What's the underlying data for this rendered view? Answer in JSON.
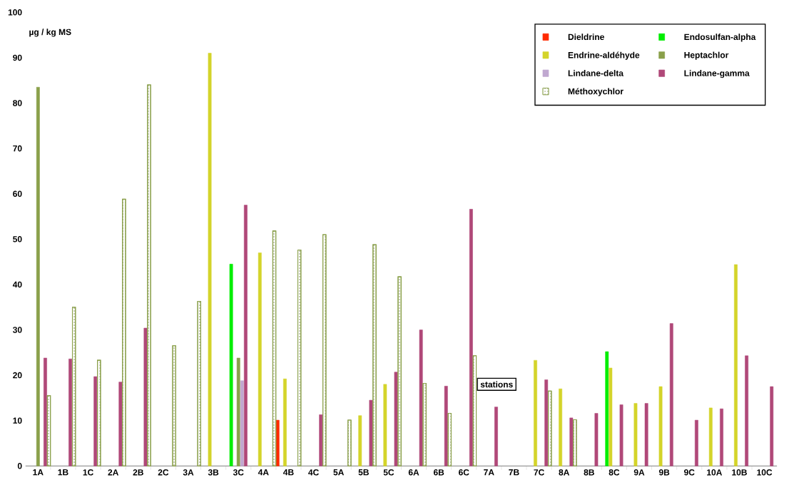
{
  "chart_data": {
    "type": "bar",
    "xlabel": "stations",
    "ylabel": "µg / kg MS",
    "categories": [
      "1A",
      "1B",
      "1C",
      "2A",
      "2B",
      "2C",
      "3A",
      "3B",
      "3C",
      "4A",
      "4B",
      "4C",
      "5A",
      "5B",
      "5C",
      "6A",
      "6B",
      "6C",
      "7A",
      "7B",
      "7C",
      "8A",
      "8B",
      "8C",
      "9A",
      "9B",
      "9C",
      "10A",
      "10B",
      "10C"
    ],
    "series": [
      {
        "name": "Dieldrine",
        "color": "#ff2a00",
        "values": [
          null,
          null,
          null,
          null,
          null,
          null,
          null,
          null,
          null,
          null,
          10.1,
          null,
          null,
          null,
          null,
          null,
          null,
          null,
          null,
          null,
          null,
          null,
          null,
          null,
          null,
          null,
          null,
          null,
          null,
          null
        ]
      },
      {
        "name": "Endosulfan-alpha",
        "color": "#00ee00",
        "values": [
          null,
          null,
          null,
          null,
          null,
          null,
          null,
          null,
          44.5,
          null,
          null,
          null,
          null,
          null,
          null,
          null,
          null,
          null,
          null,
          null,
          null,
          null,
          null,
          25.2,
          null,
          null,
          null,
          null,
          null,
          null
        ]
      },
      {
        "name": "Endrine-aldéhyde",
        "color": "#d4d42a",
        "values": [
          null,
          null,
          null,
          null,
          null,
          null,
          null,
          91,
          null,
          47,
          19.2,
          null,
          null,
          11.1,
          18,
          null,
          null,
          null,
          null,
          null,
          23.3,
          17,
          null,
          21.6,
          13.8,
          17.5,
          null,
          12.8,
          44.4,
          null
        ]
      },
      {
        "name": "Heptachlor",
        "color": "#8aa04a",
        "values": [
          83.5,
          null,
          null,
          null,
          null,
          null,
          null,
          null,
          23.8,
          null,
          null,
          null,
          null,
          null,
          null,
          null,
          null,
          null,
          null,
          null,
          null,
          null,
          null,
          null,
          null,
          null,
          null,
          null,
          null,
          null
        ]
      },
      {
        "name": "Lindane-delta",
        "color": "#c0a8d0",
        "values": [
          null,
          null,
          null,
          null,
          null,
          null,
          null,
          null,
          18.8,
          null,
          null,
          null,
          null,
          null,
          null,
          null,
          null,
          null,
          null,
          null,
          null,
          null,
          null,
          null,
          null,
          null,
          null,
          null,
          null,
          null
        ]
      },
      {
        "name": "Lindane-gamma",
        "color": "#b04878",
        "values": [
          23.8,
          23.6,
          19.7,
          18.5,
          30.4,
          null,
          null,
          null,
          57.5,
          null,
          null,
          11.3,
          null,
          14.5,
          20.7,
          30,
          17.6,
          56.6,
          13,
          null,
          19,
          10.6,
          11.6,
          13.5,
          13.8,
          31.4,
          10.1,
          12.6,
          24.3,
          17.5
        ]
      },
      {
        "name": "Méthoxychlor",
        "color": "#8aa04a",
        "values": [
          15.5,
          35,
          23.3,
          58.8,
          84,
          26.5,
          36.3,
          null,
          null,
          51.8,
          47.6,
          51,
          10.1,
          48.8,
          41.7,
          18.2,
          11.6,
          24.3,
          null,
          null,
          16.5,
          10.2,
          null,
          null,
          null,
          null,
          null,
          null,
          null,
          null
        ]
      }
    ],
    "ylim": [
      0,
      100
    ],
    "yticks": [
      0,
      10,
      20,
      30,
      40,
      50,
      60,
      70,
      80,
      90,
      100
    ],
    "legend": "top right"
  }
}
